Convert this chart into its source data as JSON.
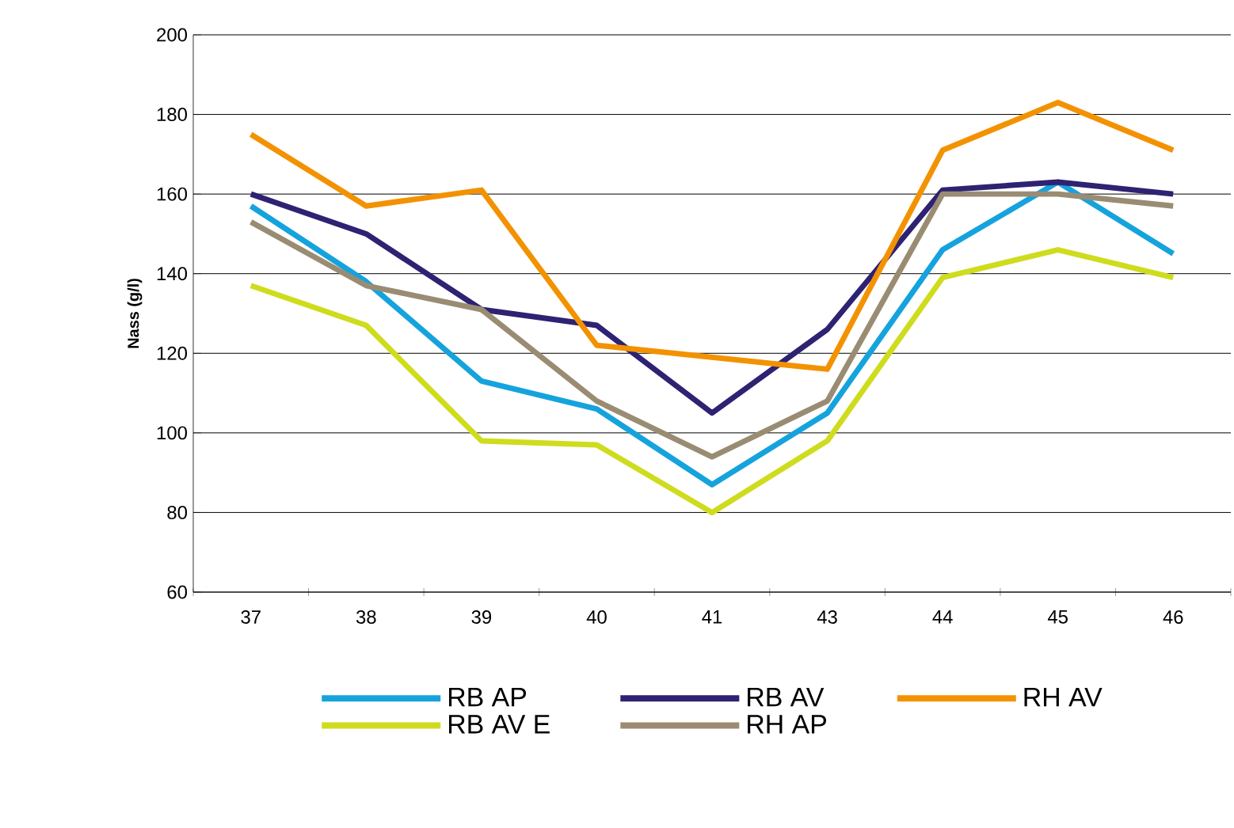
{
  "chart_data": {
    "type": "line",
    "ylabel": "Nass (g/l)",
    "categories": [
      "37",
      "38",
      "39",
      "40",
      "41",
      "43",
      "44",
      "45",
      "46"
    ],
    "series": [
      {
        "name": "RB AP",
        "color": "#15a3dd",
        "values": [
          157,
          138,
          113,
          106,
          87,
          105,
          146,
          163,
          145
        ]
      },
      {
        "name": "RB AV",
        "color": "#2e2272",
        "values": [
          160,
          150,
          131,
          127,
          105,
          126,
          161,
          163,
          160
        ]
      },
      {
        "name": "RH AV",
        "color": "#f39200",
        "values": [
          175,
          157,
          161,
          122,
          119,
          116,
          171,
          183,
          171
        ]
      },
      {
        "name": "RB AV E",
        "color": "#cfdc1e",
        "values": [
          137,
          127,
          98,
          97,
          80,
          98,
          139,
          146,
          139
        ]
      },
      {
        "name": "RH AP",
        "color": "#9a8c73",
        "values": [
          153,
          137,
          131,
          108,
          94,
          108,
          160,
          160,
          157
        ]
      }
    ],
    "ylim": [
      60,
      200
    ],
    "yticks": [
      60,
      80,
      100,
      120,
      140,
      160,
      180,
      200
    ],
    "grid": "y",
    "legend": "bottom"
  }
}
